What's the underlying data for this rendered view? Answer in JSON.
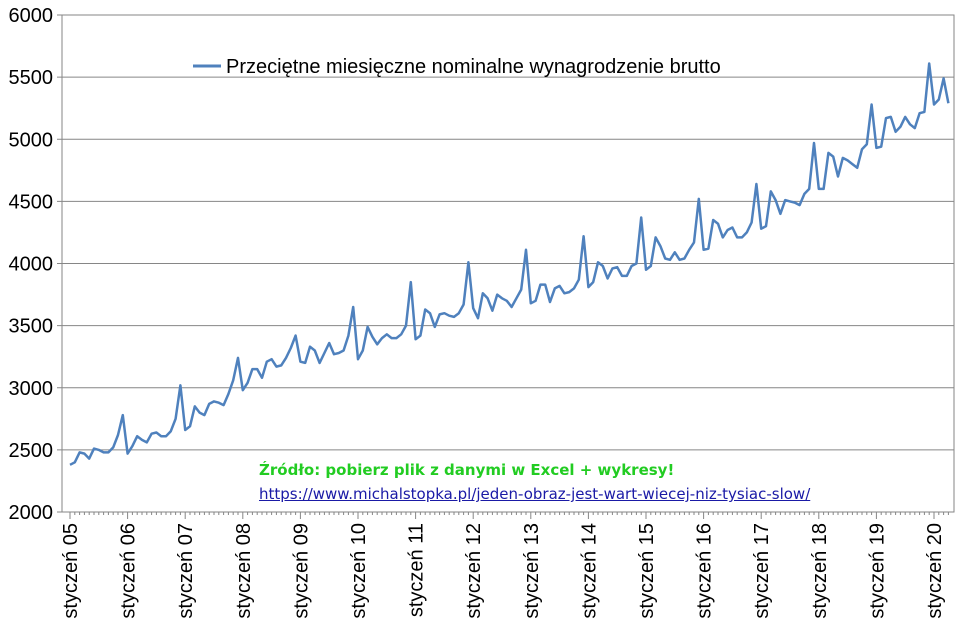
{
  "chart_data": {
    "type": "line",
    "title": "",
    "xlabel": "",
    "ylabel": "",
    "ylim": [
      2000,
      6000
    ],
    "yticks": [
      2000,
      2500,
      3000,
      3500,
      4000,
      4500,
      5000,
      5500,
      6000
    ],
    "xtick_labels": [
      "styczeń 05",
      "styczeń 06",
      "styczeń 07",
      "styczeń 08",
      "styczeń 09",
      "styczeń 10",
      "styczeń 11",
      "styczeń 12",
      "styczeń 13",
      "styczeń 14",
      "styczeń 15",
      "styczeń 16",
      "styczeń 17",
      "styczeń 18",
      "styczeń 19",
      "styczeń 20"
    ],
    "grid": true,
    "legend": "top",
    "series": [
      {
        "name": "Przeciętne miesięczne nominalne wynagrodzenie brutto",
        "color": "#4f81bd",
        "values": [
          2380,
          2400,
          2480,
          2470,
          2430,
          2510,
          2500,
          2480,
          2480,
          2520,
          2620,
          2780,
          2470,
          2530,
          2610,
          2580,
          2560,
          2630,
          2640,
          2610,
          2610,
          2650,
          2750,
          3020,
          2660,
          2690,
          2850,
          2800,
          2780,
          2870,
          2890,
          2880,
          2860,
          2950,
          3060,
          3240,
          2980,
          3040,
          3150,
          3150,
          3080,
          3210,
          3230,
          3170,
          3180,
          3240,
          3320,
          3420,
          3210,
          3200,
          3330,
          3300,
          3200,
          3280,
          3360,
          3270,
          3280,
          3300,
          3420,
          3650,
          3230,
          3300,
          3490,
          3410,
          3350,
          3400,
          3430,
          3400,
          3400,
          3430,
          3500,
          3850,
          3390,
          3420,
          3630,
          3600,
          3490,
          3590,
          3600,
          3580,
          3570,
          3600,
          3670,
          4010,
          3640,
          3560,
          3760,
          3720,
          3620,
          3750,
          3720,
          3700,
          3650,
          3720,
          3790,
          4110,
          3680,
          3700,
          3830,
          3830,
          3690,
          3800,
          3820,
          3760,
          3770,
          3800,
          3870,
          4220,
          3810,
          3850,
          4010,
          3980,
          3880,
          3960,
          3970,
          3900,
          3900,
          3980,
          4000,
          4370,
          3950,
          3980,
          4210,
          4140,
          4040,
          4030,
          4090,
          4030,
          4040,
          4110,
          4170,
          4520,
          4110,
          4120,
          4350,
          4320,
          4210,
          4270,
          4290,
          4210,
          4210,
          4250,
          4330,
          4640,
          4280,
          4300,
          4580,
          4510,
          4400,
          4510,
          4500,
          4490,
          4470,
          4560,
          4600,
          4970,
          4600,
          4600,
          4890,
          4860,
          4700,
          4850,
          4830,
          4800,
          4770,
          4920,
          4960,
          5280,
          4930,
          4940,
          5170,
          5180,
          5060,
          5100,
          5180,
          5120,
          5090,
          5210,
          5220,
          5610,
          5280,
          5320,
          5490,
          5290
        ]
      }
    ],
    "annotations": [
      "Źródło: pobierz plik z danymi w Excel + wykresy!",
      "https://www.michalstopka.pl/jeden-obraz-jest-wart-wiecej-niz-tysiac-slow/"
    ]
  }
}
